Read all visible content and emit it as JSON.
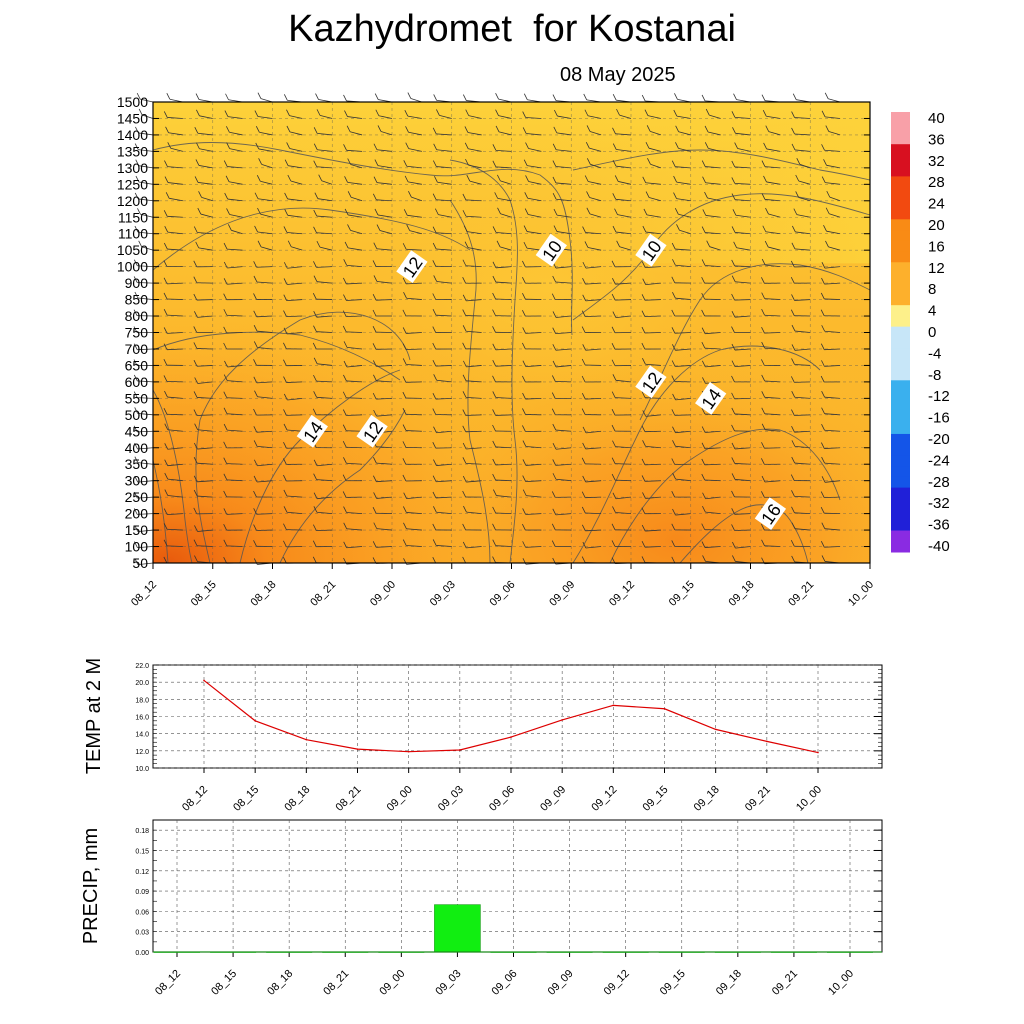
{
  "title": "Kazhydromet  for Kostanai",
  "subtitle": "08 May 2025",
  "chart_data": [
    {
      "type": "heatmap",
      "name": "cross-section",
      "x_ticks": [
        "08_12",
        "08_15",
        "08_18",
        "08_21",
        "09_00",
        "09_03",
        "09_06",
        "09_09",
        "09_12",
        "09_15",
        "09_18",
        "09_21",
        "10_00"
      ],
      "y_ticks": [
        50,
        100,
        150,
        200,
        250,
        300,
        350,
        400,
        450,
        500,
        550,
        600,
        650,
        700,
        750,
        800,
        850,
        900,
        1000,
        1050,
        1100,
        1150,
        1200,
        1250,
        1300,
        1350,
        1400,
        1450,
        1500
      ],
      "y_tick_labels": [
        "50",
        "100",
        "150",
        "200",
        "250",
        "300",
        "350",
        "400",
        "450",
        "500",
        "550",
        "600",
        "650",
        "700",
        "750",
        "800",
        "850",
        "900",
        "1000",
        "1050",
        "1100",
        "1150",
        "1200",
        "1250",
        "1300",
        "1350",
        "1400",
        "1450",
        "1500"
      ],
      "colorbar_labels": [
        "40",
        "36",
        "32",
        "28",
        "24",
        "20",
        "16",
        "12",
        "8",
        "4",
        "0",
        "-4",
        "-8",
        "-12",
        "-16",
        "-20",
        "-24",
        "-28",
        "-32",
        "-36",
        "-40"
      ],
      "contour_labels": [
        {
          "text": "12",
          "x": "09_01",
          "y": 1000
        },
        {
          "text": "10",
          "x": "09_08",
          "y": 1050
        },
        {
          "text": "10",
          "x": "09_13",
          "y": 1050
        },
        {
          "text": "12",
          "x": "09_13",
          "y": 600
        },
        {
          "text": "14",
          "x": "09_16",
          "y": 550
        },
        {
          "text": "14",
          "x": "08_20",
          "y": 450
        },
        {
          "text": "12",
          "x": "08_23",
          "y": 450
        },
        {
          "text": "16",
          "x": "09_19",
          "y": 200
        }
      ]
    },
    {
      "type": "line",
      "name": "temperature",
      "ylabel": "TEMP at 2 M",
      "ylim": [
        10.0,
        22.0
      ],
      "y_tick_labels": [
        "10.0",
        "12.0",
        "14.0",
        "16.0",
        "18.0",
        "20.0",
        "22.0"
      ],
      "x": [
        "08_12",
        "08_15",
        "08_18",
        "08_21",
        "09_00",
        "09_03",
        "09_06",
        "09_09",
        "09_12",
        "09_15",
        "09_18",
        "09_21",
        "10_00"
      ],
      "values": [
        20.2,
        15.5,
        13.3,
        12.2,
        11.9,
        12.1,
        13.6,
        15.6,
        17.3,
        16.9,
        14.5,
        13.1,
        11.8
      ],
      "color": "#dd0000"
    },
    {
      "type": "bar",
      "name": "precipitation",
      "ylabel": "PRECIP, mm",
      "ylim": [
        0.0,
        0.195
      ],
      "y_tick_labels": [
        "0.00",
        "0.03",
        "0.06",
        "0.09",
        "0.12",
        "0.15",
        "0.18"
      ],
      "categories": [
        "08_12",
        "08_15",
        "08_18",
        "08_21",
        "09_00",
        "09_03",
        "09_06",
        "09_09",
        "09_12",
        "09_15",
        "09_18",
        "09_21",
        "10_00"
      ],
      "values": [
        0,
        0,
        0,
        0,
        0,
        0.07,
        0,
        0,
        0,
        0,
        0,
        0,
        0
      ],
      "color": "#11ee11"
    }
  ]
}
